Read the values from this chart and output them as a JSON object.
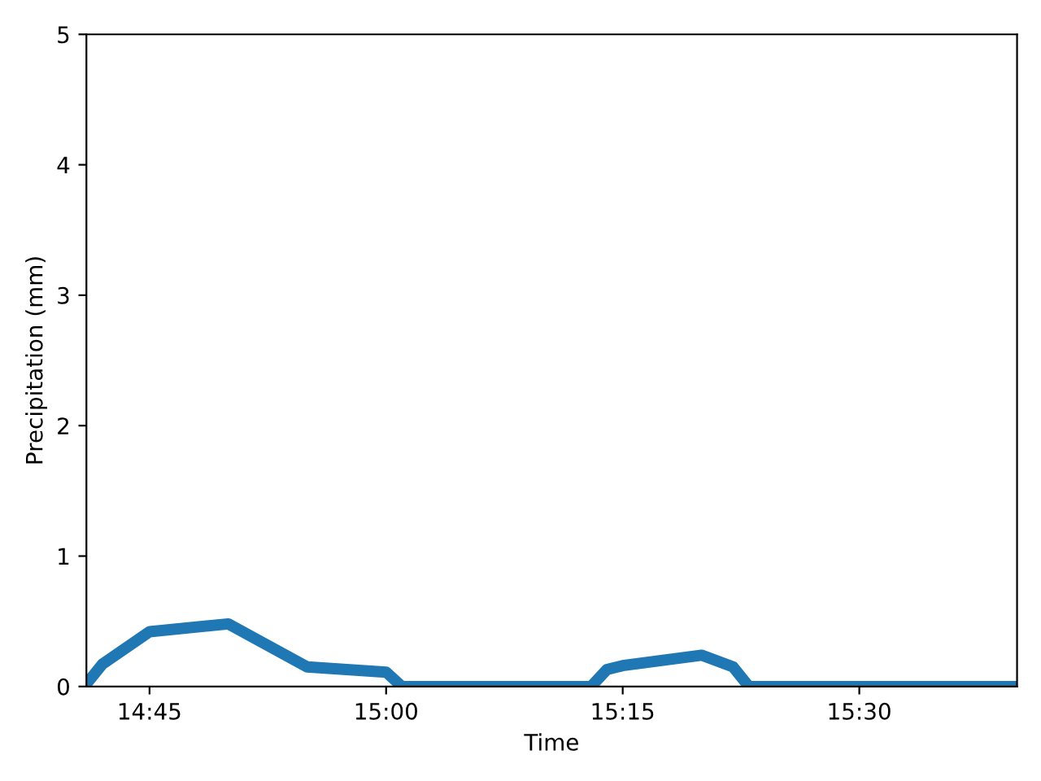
{
  "chart_data": {
    "type": "line",
    "xlabel": "Time",
    "ylabel": "Precipitation (mm)",
    "x": [
      14.6833,
      14.7,
      14.75,
      14.8333,
      14.9167,
      15.0,
      15.0167,
      15.2167,
      15.2333,
      15.25,
      15.3333,
      15.3667,
      15.3833,
      15.6667
    ],
    "series": [
      {
        "color": "#1f77b4",
        "values": [
          0.02,
          0.17,
          0.42,
          0.48,
          0.15,
          0.11,
          0,
          0,
          0.13,
          0.16,
          0.24,
          0.15,
          0,
          0
        ]
      }
    ],
    "xlim": [
      14.6833,
      15.6667
    ],
    "xticks": [
      {
        "value": 14.75,
        "label": "14:45"
      },
      {
        "value": 15.0,
        "label": "15:00"
      },
      {
        "value": 15.25,
        "label": "15:15"
      },
      {
        "value": 15.5,
        "label": "15:30"
      }
    ],
    "ylim": [
      0,
      5
    ],
    "yticks": [
      0,
      1,
      2,
      3,
      4,
      5
    ],
    "grid": false,
    "legend": false,
    "marker": "none",
    "line_style": "solid"
  }
}
